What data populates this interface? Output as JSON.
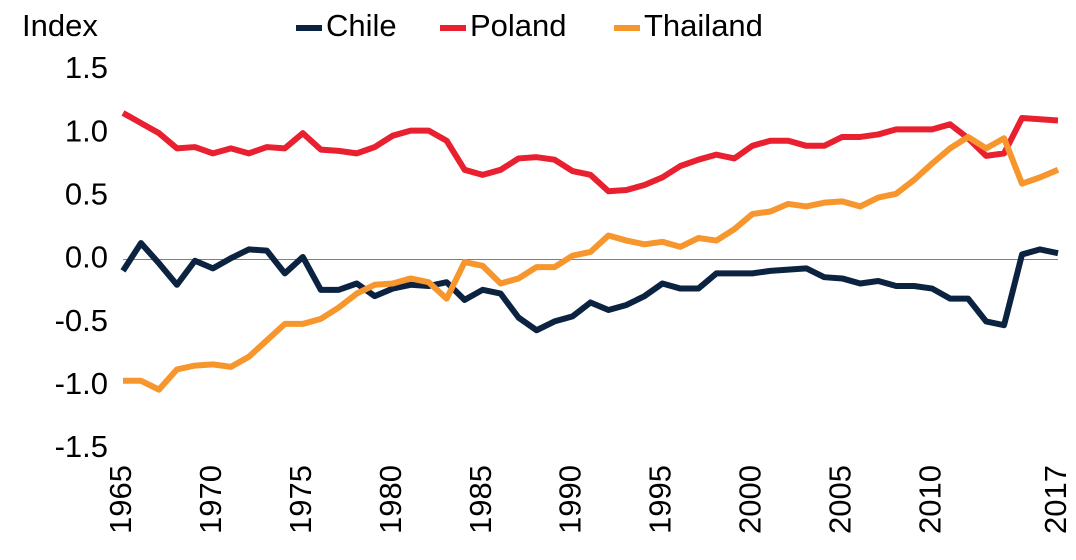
{
  "chart_data": {
    "type": "line",
    "y_label": "Index",
    "legend": "top",
    "x": [
      1965,
      1966,
      1967,
      1968,
      1969,
      1970,
      1971,
      1972,
      1973,
      1974,
      1975,
      1976,
      1977,
      1978,
      1979,
      1980,
      1981,
      1982,
      1983,
      1984,
      1985,
      1986,
      1987,
      1988,
      1989,
      1990,
      1991,
      1992,
      1993,
      1994,
      1995,
      1996,
      1997,
      1998,
      1999,
      2000,
      2001,
      2002,
      2003,
      2004,
      2005,
      2006,
      2007,
      2008,
      2009,
      2010,
      2011,
      2012,
      2013,
      2014,
      2015,
      2016,
      2017
    ],
    "series": [
      {
        "name": "Chile",
        "color": "#0b2341",
        "values": [
          -0.09,
          0.13,
          -0.03,
          -0.2,
          -0.01,
          -0.07,
          0.01,
          0.08,
          0.07,
          -0.11,
          0.02,
          -0.24,
          -0.24,
          -0.19,
          -0.29,
          -0.23,
          -0.2,
          -0.21,
          -0.18,
          -0.32,
          -0.24,
          -0.27,
          -0.46,
          -0.56,
          -0.49,
          -0.45,
          -0.34,
          -0.4,
          -0.36,
          -0.29,
          -0.19,
          -0.23,
          -0.23,
          -0.11,
          -0.11,
          -0.11,
          -0.09,
          -0.08,
          -0.07,
          -0.14,
          -0.15,
          -0.19,
          -0.17,
          -0.21,
          -0.21,
          -0.23,
          -0.31,
          -0.31,
          -0.49,
          -0.52,
          0.04,
          0.08,
          0.05
        ]
      },
      {
        "name": "Poland",
        "color": "#e8202f",
        "values": [
          1.16,
          1.08,
          1.0,
          0.88,
          0.89,
          0.84,
          0.88,
          0.84,
          0.89,
          0.88,
          1.0,
          0.87,
          0.86,
          0.84,
          0.89,
          0.98,
          1.02,
          1.02,
          0.94,
          0.71,
          0.67,
          0.71,
          0.8,
          0.81,
          0.79,
          0.7,
          0.67,
          0.54,
          0.55,
          0.59,
          0.65,
          0.74,
          0.79,
          0.83,
          0.8,
          0.9,
          0.94,
          0.94,
          0.9,
          0.9,
          0.97,
          0.97,
          0.99,
          1.03,
          1.03,
          1.03,
          1.07,
          0.96,
          0.82,
          0.84,
          1.12,
          1.11,
          1.1
        ]
      },
      {
        "name": "Thailand",
        "color": "#f7962d",
        "values": [
          -0.96,
          -0.96,
          -1.03,
          -0.87,
          -0.84,
          -0.83,
          -0.85,
          -0.77,
          -0.64,
          -0.51,
          -0.51,
          -0.47,
          -0.38,
          -0.27,
          -0.2,
          -0.19,
          -0.15,
          -0.18,
          -0.31,
          -0.02,
          -0.05,
          -0.19,
          -0.15,
          -0.06,
          -0.06,
          0.03,
          0.06,
          0.19,
          0.15,
          0.12,
          0.14,
          0.1,
          0.17,
          0.15,
          0.24,
          0.36,
          0.38,
          0.44,
          0.42,
          0.45,
          0.46,
          0.42,
          0.49,
          0.52,
          0.63,
          0.76,
          0.88,
          0.97,
          0.88,
          0.96,
          0.6,
          0.65,
          0.71
        ]
      }
    ],
    "xlim": [
      1965,
      2017
    ],
    "xticks": [
      1965,
      1970,
      1975,
      1980,
      1985,
      1990,
      1995,
      2000,
      2005,
      2010,
      2017
    ],
    "ylim": [
      -1.5,
      1.5
    ],
    "yticks": [
      1.5,
      {
        "value": 1,
        "label": "1.0"
      },
      0.5,
      {
        "value": 0,
        "label": "0.0"
      },
      -0.5,
      {
        "value": -1,
        "label": "-1.0"
      },
      -1.5
    ]
  }
}
